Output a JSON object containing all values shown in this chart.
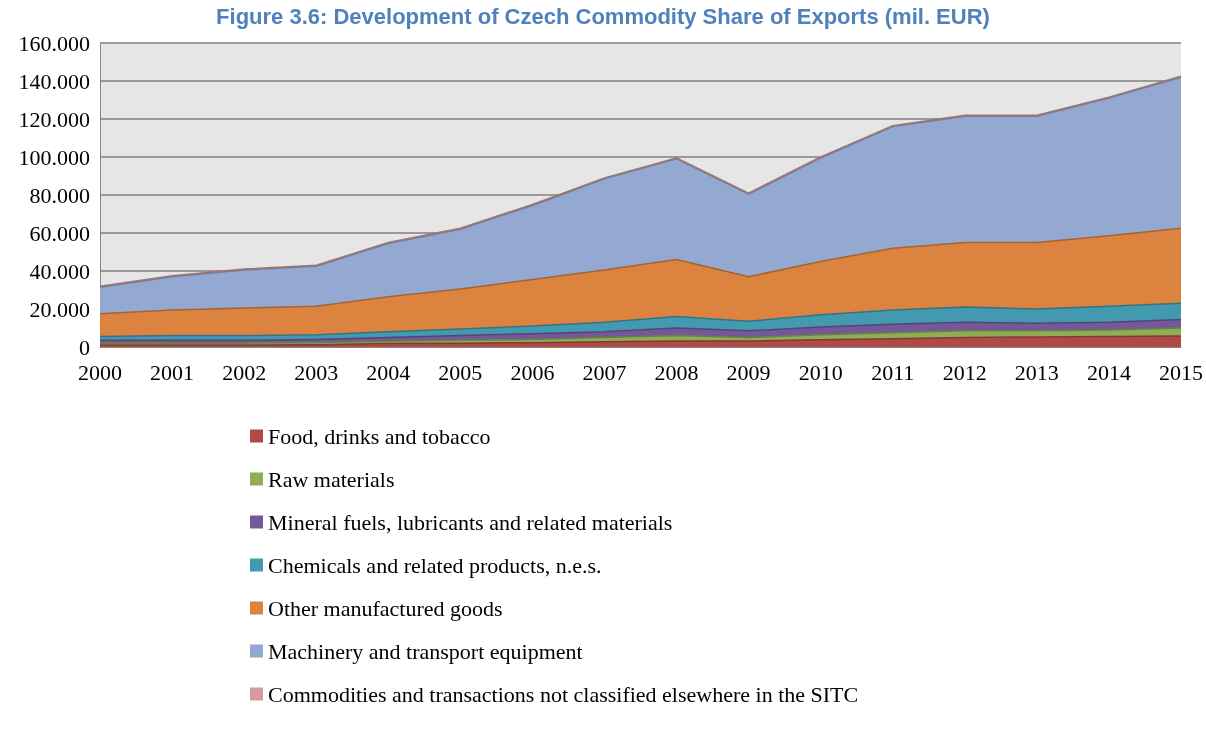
{
  "chart_data": {
    "type": "area",
    "stacked": true,
    "title": "Figure 3.6: Development of Czech Commodity Share of Exports (mil. EUR)",
    "categories": [
      "2000",
      "2001",
      "2002",
      "2003",
      "2004",
      "2005",
      "2006",
      "2007",
      "2008",
      "2009",
      "2010",
      "2011",
      "2012",
      "2013",
      "2014",
      "2015"
    ],
    "series": [
      {
        "name": "Food, drinks and tobacco",
        "color": "#b04a46",
        "values": [
          1.0,
          1.0,
          1.0,
          1.2,
          1.8,
          2.0,
          2.3,
          2.8,
          3.2,
          3.2,
          3.8,
          4.3,
          5.0,
          5.3,
          5.5,
          5.8
        ]
      },
      {
        "name": "Raw materials",
        "color": "#8fad54",
        "values": [
          1.0,
          1.0,
          1.0,
          1.1,
          1.2,
          1.5,
          1.7,
          2.2,
          2.8,
          1.8,
          2.7,
          3.2,
          3.5,
          3.2,
          3.5,
          4.2
        ]
      },
      {
        "name": "Mineral fuels, lubricants and related materials",
        "color": "#73599a",
        "values": [
          1.5,
          1.5,
          1.5,
          1.7,
          2.0,
          2.5,
          3.0,
          3.0,
          4.0,
          3.5,
          4.0,
          4.5,
          4.5,
          4.0,
          4.0,
          4.5
        ]
      },
      {
        "name": "Chemicals and related products, n.e.s.",
        "color": "#4299b0",
        "values": [
          2.0,
          2.5,
          2.5,
          2.5,
          3.0,
          3.5,
          4.0,
          5.0,
          6.0,
          5.0,
          6.5,
          7.5,
          8.0,
          7.5,
          8.5,
          8.5
        ]
      },
      {
        "name": "Other manufactured goods",
        "color": "#dc843f",
        "values": [
          12.0,
          13.5,
          14.5,
          15.0,
          18.5,
          21.0,
          24.5,
          27.5,
          30.0,
          23.5,
          28.0,
          32.5,
          34.0,
          35.0,
          37.0,
          39.5
        ]
      },
      {
        "name": "Machinery and transport equipment",
        "color": "#94a9d1",
        "values": [
          14.0,
          17.5,
          20.0,
          21.0,
          28.0,
          31.5,
          39.0,
          48.0,
          53.0,
          43.5,
          54.5,
          64.0,
          66.5,
          66.5,
          72.5,
          79.5
        ]
      },
      {
        "name": "Commodities and transactions not classified elsewhere in the SITC",
        "color": "#d69a98",
        "values": [
          0.5,
          0.5,
          0.5,
          0.5,
          0.5,
          0.5,
          0.5,
          0.5,
          0.5,
          0.5,
          0.5,
          0.5,
          0.5,
          0.5,
          0.5,
          0.5
        ]
      }
    ],
    "ylim": [
      0,
      160
    ],
    "yticks": [
      0,
      {
        "value": 20,
        "label": "20.000"
      },
      {
        "value": 40,
        "label": "40.000"
      },
      {
        "value": 60,
        "label": "60.000"
      },
      {
        "value": 80,
        "label": "80.000"
      },
      {
        "value": 100,
        "label": "100.000"
      },
      {
        "value": 120,
        "label": "120.000"
      },
      {
        "value": 140,
        "label": "140.000"
      },
      {
        "value": 160,
        "label": "160.000"
      }
    ],
    "grid": "y",
    "legend": "bottom"
  }
}
